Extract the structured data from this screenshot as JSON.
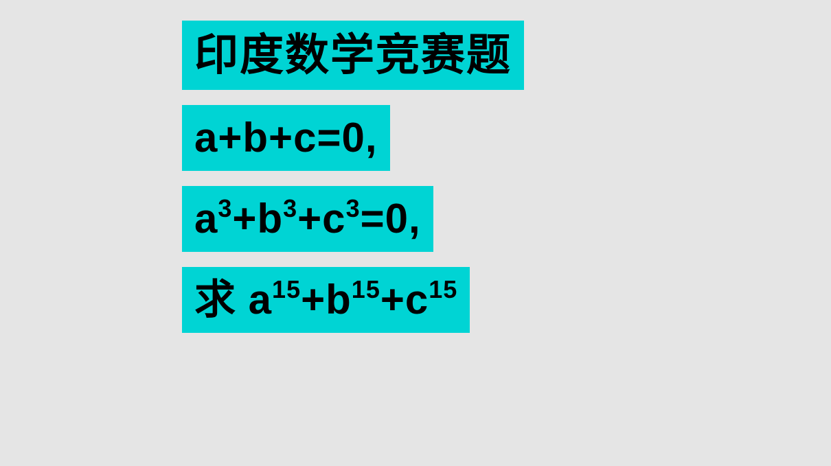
{
  "colors": {
    "background": "#e5e5e5",
    "highlight": "#00d4d4",
    "text": "#000000"
  },
  "typography": {
    "title_fontsize": 64,
    "equation_fontsize": 60,
    "font_weight": 900
  },
  "title": "印度数学竞赛题",
  "equations": {
    "line1": {
      "text": "a+b+c=0,"
    },
    "line2": {
      "prefix": "a",
      "exp1": "3",
      "mid1": "+b",
      "exp2": "3",
      "mid2": "+c",
      "exp3": "3",
      "suffix": "=0,"
    },
    "line3": {
      "prefix": "求 a",
      "exp1": "15",
      "mid1": "+b",
      "exp2": "15",
      "mid2": "+c",
      "exp3": "15",
      "suffix": ""
    }
  }
}
